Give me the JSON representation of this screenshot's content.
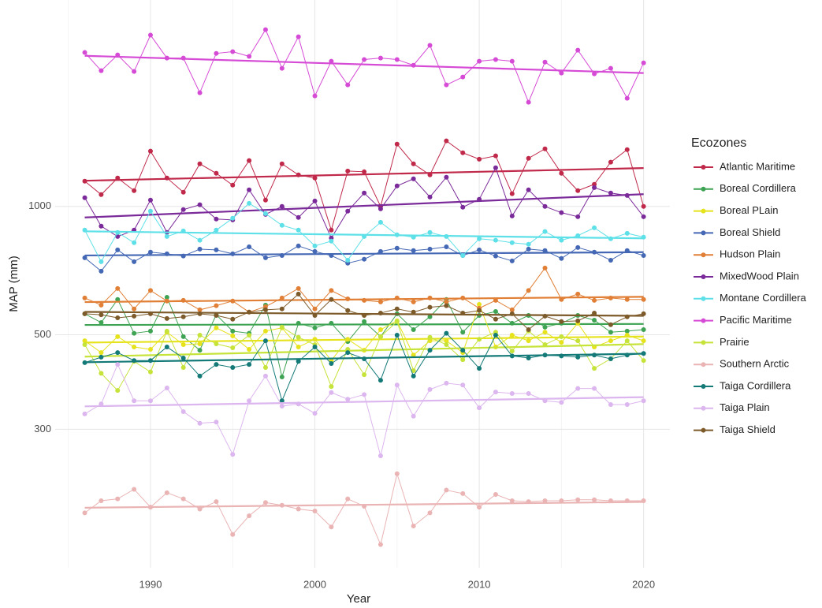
{
  "chart_data": {
    "type": "line",
    "xlabel": "Year",
    "ylabel": "MAP (mm)",
    "legend_title": "Ecozones",
    "legend_position": "right",
    "log_scale": true,
    "grid": true,
    "trend_lines": true,
    "xlim": [
      1984.2,
      2021.6
    ],
    "xticks": [
      1990,
      2000,
      2010,
      2020
    ],
    "ylim": [
      142,
      3050
    ],
    "yticks": [
      300,
      500,
      1000
    ],
    "x": [
      1986,
      1987,
      1988,
      1989,
      1990,
      1991,
      1992,
      1993,
      1994,
      1995,
      1996,
      1997,
      1998,
      1999,
      2000,
      2001,
      2002,
      2003,
      2004,
      2005,
      2006,
      2007,
      2008,
      2009,
      2010,
      2011,
      2012,
      2013,
      2014,
      2015,
      2016,
      2017,
      2018,
      2019,
      2020
    ],
    "series": [
      {
        "name": "Atlantic Maritime",
        "color": "#c0294a",
        "values": [
          1146,
          1066,
          1166,
          1089,
          1348,
          1166,
          1080,
          1259,
          1196,
          1122,
          1281,
          1035,
          1259,
          1186,
          1166,
          880,
          1211,
          1206,
          1000,
          1400,
          1259,
          1186,
          1425,
          1336,
          1291,
          1314,
          1071,
          1297,
          1365,
          1196,
          1089,
          1127,
          1270,
          1359,
          1000
        ]
      },
      {
        "name": "Boreal Cordillera",
        "color": "#3fa354",
        "values": [
          560,
          534,
          605,
          504,
          510,
          612,
          495,
          460,
          557,
          510,
          504,
          587,
          398,
          532,
          519,
          532,
          482,
          537,
          495,
          560,
          514,
          551,
          605,
          507,
          555,
          567,
          532,
          555,
          521,
          532,
          555,
          541,
          507,
          510,
          514
        ]
      },
      {
        "name": "Boreal PLain",
        "color": "#e6e31c",
        "values": [
          484,
          454,
          495,
          468,
          462,
          507,
          474,
          476,
          519,
          497,
          462,
          510,
          519,
          468,
          488,
          435,
          488,
          460,
          514,
          539,
          448,
          484,
          484,
          454,
          589,
          468,
          499,
          484,
          507,
          480,
          532,
          468,
          484,
          499,
          484
        ]
      },
      {
        "name": "Boreal Shield",
        "color": "#4568b5",
        "values": [
          758,
          705,
          791,
          742,
          781,
          774,
          765,
          794,
          791,
          774,
          804,
          758,
          767,
          808,
          784,
          767,
          736,
          752,
          784,
          798,
          788,
          794,
          804,
          767,
          791,
          765,
          745,
          794,
          788,
          755,
          801,
          781,
          748,
          788,
          767
        ]
      },
      {
        "name": "Hudson Plain",
        "color": "#e07f35",
        "values": [
          610,
          587,
          642,
          575,
          635,
          600,
          602,
          572,
          585,
          600,
          565,
          582,
          610,
          642,
          575,
          635,
          607,
          602,
          597,
          610,
          597,
          610,
          597,
          610,
          577,
          602,
          572,
          635,
          717,
          605,
          623,
          602,
          610,
          605,
          605
        ]
      },
      {
        "name": "MixedWood Plain",
        "color": "#7b2a9a",
        "values": [
          1048,
          899,
          850,
          880,
          1035,
          869,
          983,
          1009,
          934,
          930,
          1094,
          958,
          1000,
          942,
          1030,
          843,
          975,
          1075,
          987,
          1117,
          1161,
          1052,
          1171,
          996,
          1039,
          1232,
          950,
          1094,
          1000,
          967,
          946,
          1107,
          1075,
          1061,
          946
        ]
      },
      {
        "name": "Montane Cordillera",
        "color": "#5ee0e8",
        "values": [
          880,
          742,
          869,
          822,
          975,
          850,
          876,
          833,
          880,
          938,
          1017,
          962,
          903,
          880,
          808,
          829,
          748,
          850,
          918,
          858,
          847,
          869,
          850,
          767,
          840,
          833,
          822,
          815,
          873,
          833,
          854,
          891,
          840,
          865,
          847
        ]
      },
      {
        "name": "Pacific Maritime",
        "color": "#d64bd6",
        "values": [
          2297,
          2082,
          2267,
          2073,
          2523,
          2229,
          2229,
          1848,
          2286,
          2307,
          2249,
          2599,
          2109,
          2501,
          1817,
          2191,
          1928,
          2211,
          2229,
          2211,
          2144,
          2387,
          1928,
          2012,
          2191,
          2211,
          2191,
          1756,
          2181,
          2056,
          2326,
          2047,
          2109,
          1794,
          2172
        ]
      },
      {
        "name": "Prairie",
        "color": "#c6e33a",
        "values": [
          474,
          406,
          370,
          433,
          409,
          510,
          419,
          499,
          476,
          466,
          499,
          419,
          521,
          493,
          474,
          378,
          462,
          403,
          495,
          537,
          412,
          493,
          474,
          437,
          488,
          507,
          458,
          510,
          474,
          495,
          484,
          417,
          439,
          484,
          435
        ]
      },
      {
        "name": "Southern Arctic",
        "color": "#eab4b4",
        "values": [
          191,
          204,
          206,
          217,
          197,
          213,
          206,
          195,
          203,
          170,
          188,
          202,
          199,
          195,
          193,
          177,
          206,
          198,
          161,
          236,
          178,
          191,
          216,
          212,
          197,
          211,
          204,
          203,
          204,
          204,
          205,
          205,
          204,
          204,
          204
        ]
      },
      {
        "name": "Taiga Cordillera",
        "color": "#147a78",
        "values": [
          430,
          443,
          454,
          435,
          435,
          468,
          441,
          400,
          426,
          419,
          426,
          484,
          350,
          433,
          468,
          428,
          454,
          439,
          391,
          499,
          400,
          460,
          504,
          460,
          417,
          499,
          446,
          441,
          448,
          446,
          443,
          448,
          439,
          448,
          452
        ]
      },
      {
        "name": "Taiga Plain",
        "color": "#dcb6ee",
        "values": [
          326,
          344,
          426,
          350,
          350,
          375,
          330,
          310,
          312,
          262,
          350,
          400,
          340,
          344,
          327,
          366,
          353,
          362,
          260,
          381,
          322,
          372,
          385,
          381,
          337,
          367,
          364,
          364,
          350,
          347,
          374,
          374,
          343,
          343,
          350
        ]
      },
      {
        "name": "Taiga Shield",
        "color": "#7d5a2a",
        "values": [
          560,
          557,
          548,
          553,
          560,
          546,
          551,
          560,
          555,
          544,
          565,
          572,
          575,
          623,
          555,
          605,
          570,
          555,
          562,
          575,
          565,
          580,
          585,
          562,
          570,
          544,
          560,
          514,
          553,
          537,
          539,
          562,
          528,
          551,
          560
        ]
      }
    ]
  }
}
